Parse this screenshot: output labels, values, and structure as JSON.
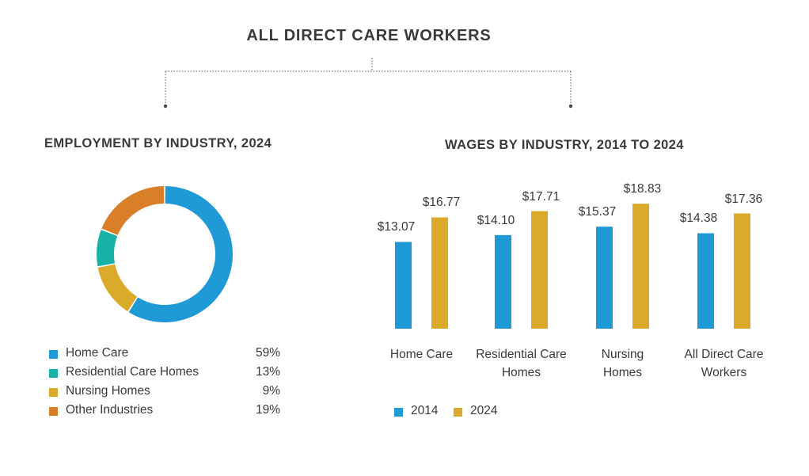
{
  "header": {
    "title": "ALL DIRECT CARE WORKERS"
  },
  "colors": {
    "home_care": "#209ad6",
    "residential": "#17b3a7",
    "nursing": "#dbaa2a",
    "other": "#d97f29",
    "y2014": "#209ad6",
    "y2024": "#dbaa2a",
    "connector": "#555555"
  },
  "chart_data": [
    {
      "type": "pie",
      "variant": "donut",
      "title": "EMPLOYMENT BY INDUSTRY, 2024",
      "legend": [
        {
          "label": "Home Care",
          "value": 59,
          "display": "59%",
          "color": "#209ad6"
        },
        {
          "label": "Residential Care Homes",
          "value": 13,
          "display": "13%",
          "color": "#17b3a7"
        },
        {
          "label": "Nursing Homes",
          "value": 9,
          "display": "9%",
          "color": "#dbaa2a"
        },
        {
          "label": "Other Industries",
          "value": 19,
          "display": "19%",
          "color": "#d97f29"
        }
      ],
      "slices_clockwise_from_top": [
        {
          "label": "Home Care",
          "value": 59,
          "color": "#209ad6"
        },
        {
          "label": "Residential Care Homes",
          "value": 13,
          "color": "#dbaa2a"
        },
        {
          "label": "Nursing Homes",
          "value": 9,
          "color": "#17b3a7"
        },
        {
          "label": "Other Industries",
          "value": 19,
          "color": "#d97f29"
        }
      ],
      "legend_placement": "bottom",
      "unit": "%"
    },
    {
      "type": "bar",
      "title": "WAGES BY INDUSTRY, 2014 TO 2024",
      "categories": [
        [
          "Home Care"
        ],
        [
          "Residential Care",
          "Homes"
        ],
        [
          "Nursing",
          "Homes"
        ],
        [
          "All Direct Care",
          "Workers"
        ]
      ],
      "series": [
        {
          "name": "2014",
          "color": "#209ad6",
          "values": [
            13.07,
            14.1,
            15.37,
            14.38
          ],
          "labels": [
            "$13.07",
            "$14.10",
            "$15.37",
            "$14.38"
          ]
        },
        {
          "name": "2024",
          "color": "#dbaa2a",
          "values": [
            16.77,
            17.71,
            18.83,
            17.36
          ],
          "labels": [
            "$16.77",
            "$17.71",
            "$18.83",
            "$17.36"
          ]
        }
      ],
      "ylim": [
        0,
        20
      ],
      "xlabel": "",
      "ylabel": "",
      "grid": false,
      "legend_placement": "bottom-left",
      "unit": "USD per hour"
    }
  ]
}
